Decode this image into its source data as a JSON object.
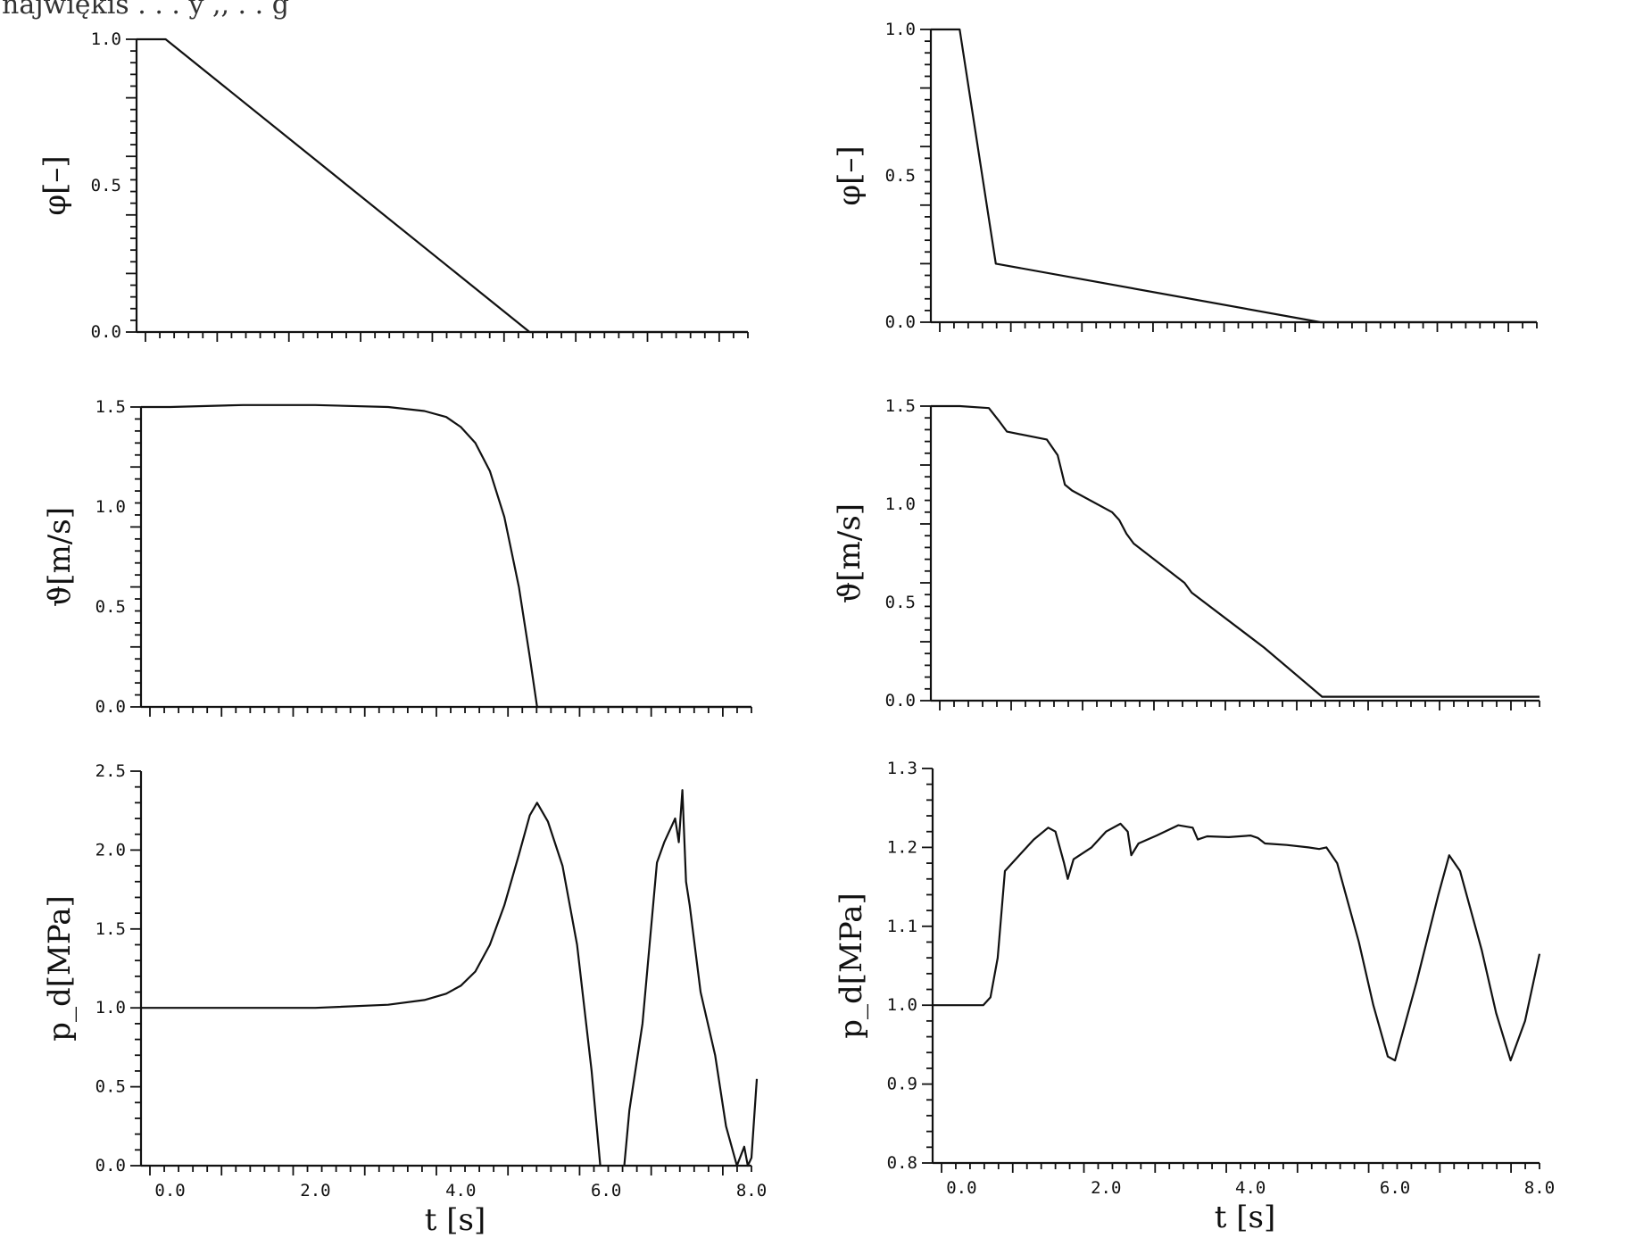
{
  "header_fragment": "najwiękis . . . y ,, . . g",
  "chart_data": [
    {
      "type": "line",
      "panel": "top-left",
      "ylabel": "φ[–]",
      "xlabel": "",
      "xlim": [
        -0.4,
        8.0
      ],
      "ylim": [
        0.0,
        1.0
      ],
      "yticks": [
        "0.0",
        "0.5",
        "1.0"
      ],
      "xticks": [],
      "x": [
        -0.4,
        0.0,
        5.0,
        8.0
      ],
      "y": [
        1.0,
        1.0,
        0.0,
        0.0
      ]
    },
    {
      "type": "line",
      "panel": "top-right",
      "ylabel": "φ[–]",
      "xlabel": "",
      "xlim": [
        -0.4,
        8.0
      ],
      "ylim": [
        0.0,
        1.0
      ],
      "yticks": [
        "0.0",
        "0.5",
        "1.0"
      ],
      "xticks": [],
      "x": [
        -0.4,
        0.0,
        0.5,
        5.0,
        8.0
      ],
      "y": [
        1.0,
        1.0,
        0.2,
        0.0,
        0.0
      ]
    },
    {
      "type": "line",
      "panel": "middle-left",
      "ylabel": "ϑ[m/s]",
      "xlabel": "",
      "xlim": [
        -0.4,
        8.0
      ],
      "ylim": [
        0.0,
        1.5
      ],
      "yticks": [
        "0.0",
        "0.5",
        "1.0",
        "1.5"
      ],
      "xticks": [],
      "x": [
        -0.4,
        0.0,
        1.0,
        2.0,
        3.0,
        3.5,
        3.8,
        4.0,
        4.2,
        4.4,
        4.6,
        4.8,
        4.95,
        5.05,
        8.0
      ],
      "y": [
        1.5,
        1.5,
        1.51,
        1.51,
        1.5,
        1.48,
        1.45,
        1.4,
        1.32,
        1.18,
        0.95,
        0.6,
        0.25,
        0.0,
        0.0
      ]
    },
    {
      "type": "line",
      "panel": "middle-right",
      "ylabel": "ϑ[m/s]",
      "xlabel": "",
      "xlim": [
        -0.4,
        8.0
      ],
      "ylim": [
        0.0,
        1.5
      ],
      "yticks": [
        "0.0",
        "0.5",
        "1.0",
        "1.5"
      ],
      "xticks": [],
      "x": [
        -0.4,
        0.0,
        0.4,
        0.55,
        0.65,
        1.2,
        1.35,
        1.45,
        1.55,
        2.1,
        2.2,
        2.3,
        2.4,
        3.1,
        3.2,
        4.2,
        5.0,
        8.0
      ],
      "y": [
        1.5,
        1.5,
        1.49,
        1.42,
        1.37,
        1.33,
        1.25,
        1.1,
        1.07,
        0.96,
        0.92,
        0.85,
        0.8,
        0.6,
        0.55,
        0.27,
        0.02,
        0.02
      ]
    },
    {
      "type": "line",
      "panel": "bottom-left",
      "ylabel": "p_d[MPa]",
      "xlabel": "t [s]",
      "xlim": [
        -0.4,
        8.0
      ],
      "ylim": [
        0.0,
        2.5
      ],
      "yticks": [
        "0.0",
        "0.5",
        "1.0",
        "1.5",
        "2.0",
        "2.5"
      ],
      "xticks": [
        "0.0",
        "2.0",
        "4.0",
        "6.0",
        "8.0"
      ],
      "x": [
        -0.4,
        0.0,
        1.0,
        2.0,
        3.0,
        3.5,
        3.8,
        4.0,
        4.2,
        4.4,
        4.6,
        4.8,
        4.95,
        5.05,
        5.2,
        5.4,
        5.6,
        5.8,
        5.92,
        6.05,
        6.25,
        6.32,
        6.5,
        6.7,
        6.8,
        6.9,
        6.95,
        7.0,
        7.05,
        7.1,
        7.15,
        7.3,
        7.5,
        7.65,
        7.8,
        7.9,
        7.95,
        8.0,
        8.1
      ],
      "y": [
        1.0,
        1.0,
        1.0,
        1.0,
        1.02,
        1.05,
        1.09,
        1.14,
        1.23,
        1.4,
        1.65,
        1.97,
        2.22,
        2.3,
        2.18,
        1.9,
        1.4,
        0.6,
        0.0,
        null,
        0.0,
        0.35,
        0.9,
        1.92,
        2.05,
        2.15,
        2.2,
        2.05,
        2.38,
        1.8,
        1.65,
        1.1,
        0.7,
        0.25,
        0.0,
        0.12,
        0.0,
        0.05,
        0.55
      ]
    },
    {
      "type": "line",
      "panel": "bottom-right",
      "ylabel": "p_d[MPa]",
      "xlabel": "t [s]",
      "xlim": [
        -0.4,
        8.0
      ],
      "ylim": [
        0.8,
        1.3
      ],
      "yticks": [
        "0.8",
        "0.9",
        "1.0",
        "1.1",
        "1.2",
        "1.3"
      ],
      "xticks": [
        "0.0",
        "2.0",
        "4.0",
        "6.0",
        "8.0"
      ],
      "x": [
        -0.4,
        0.0,
        0.3,
        0.4,
        0.5,
        0.6,
        0.8,
        1.0,
        1.2,
        1.3,
        1.42,
        1.47,
        1.55,
        1.8,
        2.0,
        2.2,
        2.3,
        2.35,
        2.45,
        2.7,
        3.0,
        3.2,
        3.27,
        3.4,
        3.7,
        4.0,
        4.1,
        4.2,
        4.5,
        4.8,
        4.95,
        5.05,
        5.2,
        5.5,
        5.7,
        5.9,
        6.0,
        6.3,
        6.6,
        6.75,
        6.9,
        7.2,
        7.4,
        7.6,
        7.8,
        8.0
      ],
      "y": [
        1.0,
        1.0,
        1.0,
        1.01,
        1.06,
        1.17,
        1.19,
        1.21,
        1.225,
        1.22,
        1.18,
        1.16,
        1.185,
        1.2,
        1.22,
        1.23,
        1.22,
        1.19,
        1.205,
        1.215,
        1.228,
        1.225,
        1.21,
        1.214,
        1.213,
        1.215,
        1.212,
        1.205,
        1.203,
        1.2,
        1.198,
        1.2,
        1.18,
        1.08,
        1.0,
        0.935,
        0.93,
        1.03,
        1.14,
        1.19,
        1.17,
        1.07,
        0.99,
        0.93,
        0.98,
        1.065
      ]
    }
  ]
}
